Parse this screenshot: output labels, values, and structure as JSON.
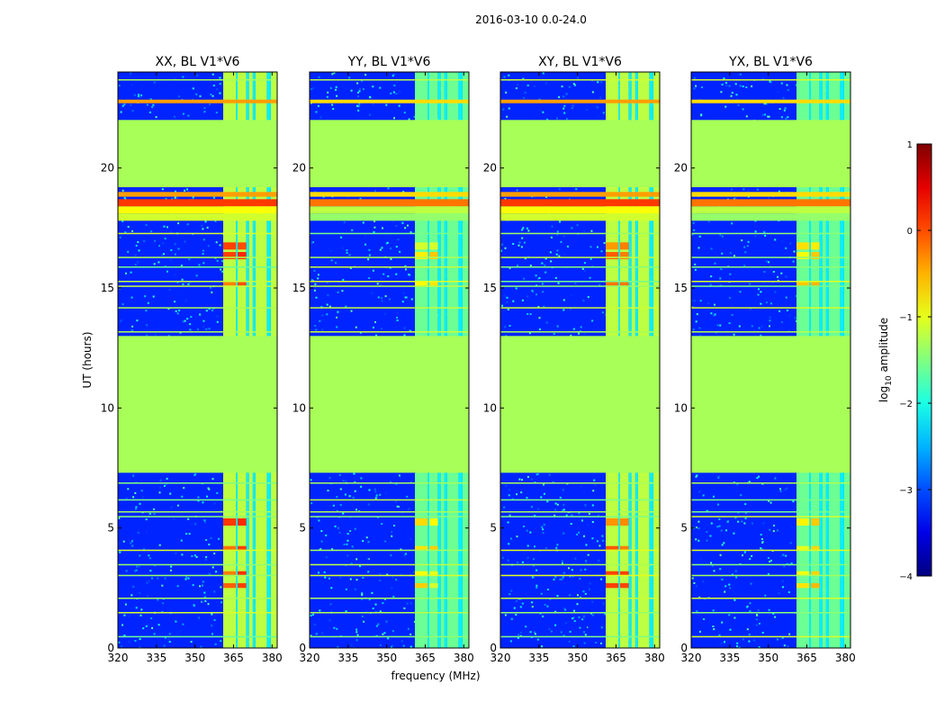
{
  "chart_data": {
    "type": "heatmap",
    "suptitle": "2016-03-10 0.0-24.0",
    "xlabel": "frequency (MHz)",
    "ylabel": "UT (hours)",
    "xlim": [
      320,
      382
    ],
    "ylim": [
      0,
      24
    ],
    "xticks": [
      320,
      335,
      350,
      365,
      380
    ],
    "yticks": [
      0,
      5,
      10,
      15,
      20
    ],
    "colorbar": {
      "label": "log",
      "label_sub": "10",
      "label_rest": " amplitude",
      "range": [
        -4,
        1
      ],
      "ticks": [
        1,
        0,
        -1,
        -2,
        -3,
        -4
      ],
      "colormap": "jet"
    },
    "fill_value": -1.3,
    "background_value": -3.2,
    "panels": [
      {
        "title": "XX, BL V1*V6",
        "band_value": -1.2,
        "hot_value": 0.25
      },
      {
        "title": "YY, BL V1*V6",
        "band_value": -1.6,
        "hot_value": -0.6
      },
      {
        "title": "XY, BL V1*V6",
        "band_value": -1.2,
        "hot_value": 0.1
      },
      {
        "title": "YX, BL V1*V6",
        "band_value": -1.6,
        "hot_value": -0.5
      }
    ],
    "flagged_ut_ranges": [
      [
        7.3,
        13.0
      ],
      [
        19.2,
        22.0
      ]
    ],
    "strong_ut_rows": [
      [
        18.4,
        18.7,
        0.1
      ],
      [
        18.8,
        19.0,
        -0.4
      ],
      [
        18.1,
        18.4,
        -0.9
      ],
      [
        17.8,
        18.1,
        -1.1
      ],
      [
        22.7,
        22.85,
        -0.4
      ]
    ],
    "rfi_frequency_bands": [
      [
        361,
        366
      ],
      [
        366,
        370
      ],
      [
        371,
        372.5
      ],
      [
        373.5,
        378
      ],
      [
        379.5,
        382
      ]
    ],
    "bright_ut_rows": [
      0.5,
      1.5,
      2.1,
      3.05,
      3.5,
      4.1,
      5.5,
      5.7,
      6.2,
      6.9,
      13.2,
      14.2,
      15.1,
      15.3,
      15.9,
      16.3,
      17.3,
      23.7
    ],
    "hot_ut_spans": [
      [
        2.5,
        2.7
      ],
      [
        3.0,
        3.2
      ],
      [
        4.1,
        4.25
      ],
      [
        5.1,
        5.4
      ],
      [
        15.1,
        15.3
      ],
      [
        16.2,
        16.5
      ],
      [
        16.6,
        16.9
      ]
    ]
  }
}
